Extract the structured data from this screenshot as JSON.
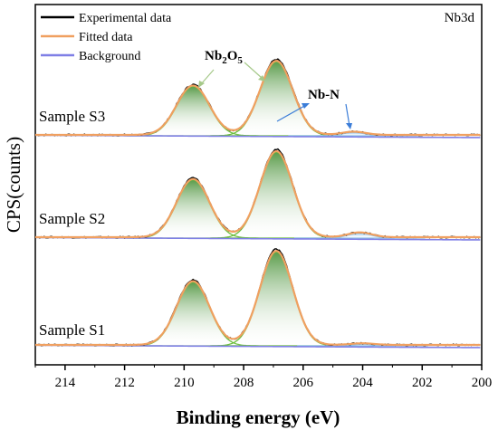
{
  "chart_data": {
    "type": "line",
    "title": "",
    "corner_label": "Nb3d",
    "xlabel": "Binding energy (eV)",
    "ylabel": "CPS(counts)",
    "xlim": [
      215,
      200
    ],
    "x_ticks": [
      214,
      212,
      210,
      208,
      206,
      204,
      202,
      200
    ],
    "x_reversed": true,
    "y_ticks_shown": false,
    "legend_position": "top-left",
    "legend": [
      {
        "label": "Experimental data",
        "color": "#000000"
      },
      {
        "label": "Fitted data",
        "color": "#f0a060"
      },
      {
        "label": "Background",
        "color": "#7f7fe6"
      }
    ],
    "annotations": [
      {
        "text_main": "Nb",
        "sub1": "2",
        "text_mid": "O",
        "sub2": "5",
        "color": "#000000"
      },
      {
        "text": "Nb-N",
        "color": "#000000"
      }
    ],
    "series": [
      {
        "name": "Sample S3",
        "baseline": 0.8,
        "peaks": [
          {
            "center": 209.7,
            "height": 0.62,
            "width": 0.55
          },
          {
            "center": 206.9,
            "height": 0.93,
            "width": 0.55
          },
          {
            "center": 204.3,
            "height": 0.04,
            "width": 0.4
          }
        ]
      },
      {
        "name": "Sample S2",
        "baseline": 0.8,
        "peaks": [
          {
            "center": 209.7,
            "height": 0.73,
            "width": 0.55
          },
          {
            "center": 206.9,
            "height": 1.08,
            "width": 0.55
          },
          {
            "center": 204.1,
            "height": 0.06,
            "width": 0.4
          }
        ]
      },
      {
        "name": "Sample S1",
        "baseline": 0.8,
        "peaks": [
          {
            "center": 209.7,
            "height": 0.8,
            "width": 0.55
          },
          {
            "center": 206.9,
            "height": 1.18,
            "width": 0.55
          },
          {
            "center": 204.0,
            "height": 0.02,
            "width": 0.4
          }
        ]
      }
    ]
  },
  "colors": {
    "experimental": "#000000",
    "fitted": "#f0a060",
    "background": "#7f7fe6",
    "peak_fill": "#5a9a3a",
    "peak_line": "#6cbf3c",
    "nbn_fill": "#8fc2e8",
    "arrow_green": "#a6c98a",
    "arrow_blue": "#3b7dd8"
  }
}
